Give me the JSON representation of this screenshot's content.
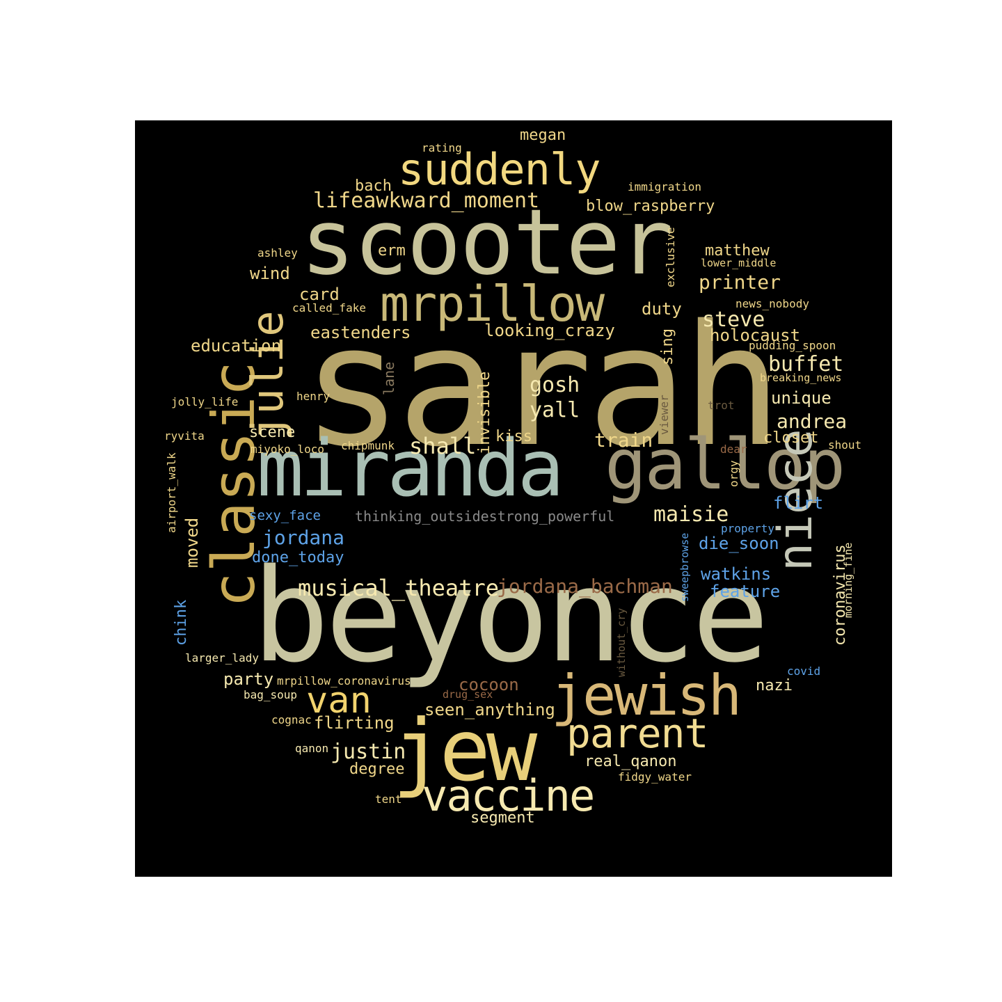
{
  "palette": {
    "background": "#000000",
    "page": "#ffffff",
    "tan": "#b5a46a",
    "light_tan": "#c7c39a",
    "sage": "#a9bfb4",
    "gold": "#e8cf7a",
    "yellow": "#f2dc8c",
    "cream": "#f6e9b0",
    "blue": "#5ea3e8",
    "rust": "#9a6a48",
    "grey": "#8a8a8a"
  },
  "words": [
    {
      "text": "sarah",
      "weight": 1.0,
      "color": "#b5a46a"
    },
    {
      "text": "beyonce",
      "weight": 0.9,
      "color": "#c8c5a0"
    },
    {
      "text": "scooter",
      "weight": 0.72,
      "color": "#c7c39a"
    },
    {
      "text": "miranda",
      "weight": 0.68,
      "color": "#a9bfb4"
    },
    {
      "text": "gallop",
      "weight": 0.62,
      "color": "#9f9578"
    },
    {
      "text": "classic",
      "weight": 0.6,
      "color": "#c9aa55"
    },
    {
      "text": "jew",
      "weight": 0.62,
      "color": "#e8cf7a"
    },
    {
      "text": "niece",
      "weight": 0.5,
      "color": "#c5c8b8"
    },
    {
      "text": "jewish",
      "weight": 0.5,
      "color": "#d8b878"
    },
    {
      "text": "mrpillow",
      "weight": 0.46,
      "color": "#c8b878"
    },
    {
      "text": "suddenly",
      "weight": 0.44,
      "color": "#f2d880"
    },
    {
      "text": "julie",
      "weight": 0.42,
      "color": "#e0c77c"
    },
    {
      "text": "parent",
      "weight": 0.42,
      "color": "#f1dc92"
    },
    {
      "text": "vaccine",
      "weight": 0.44,
      "color": "#f6e9b0"
    },
    {
      "text": "van",
      "weight": 0.36,
      "color": "#f2d36e"
    },
    {
      "text": "lifeawkward_moment",
      "weight": 0.2,
      "color": "#f0d78a"
    },
    {
      "text": "megan",
      "weight": 0.15,
      "color": "#f0d78a"
    },
    {
      "text": "rating",
      "weight": 0.1,
      "color": "#f0d78a"
    },
    {
      "text": "bach",
      "weight": 0.15,
      "color": "#f0d78a"
    },
    {
      "text": "immigration",
      "weight": 0.1,
      "color": "#f0d78a"
    },
    {
      "text": "blow_raspberry",
      "weight": 0.15,
      "color": "#f0d78a"
    },
    {
      "text": "exclusive",
      "weight": 0.1,
      "color": "#f0d78a"
    },
    {
      "text": "ashley",
      "weight": 0.11,
      "color": "#f0d78a"
    },
    {
      "text": "erm",
      "weight": 0.14,
      "color": "#f0d78a"
    },
    {
      "text": "matthew",
      "weight": 0.15,
      "color": "#f0d78a"
    },
    {
      "text": "lower_middle",
      "weight": 0.1,
      "color": "#f0d78a"
    },
    {
      "text": "wind",
      "weight": 0.15,
      "color": "#f0d78a"
    },
    {
      "text": "printer",
      "weight": 0.18,
      "color": "#f0d78a"
    },
    {
      "text": "card",
      "weight": 0.15,
      "color": "#f0d78a"
    },
    {
      "text": "called_fake",
      "weight": 0.1,
      "color": "#f0d78a"
    },
    {
      "text": "duty",
      "weight": 0.15,
      "color": "#f0d78a"
    },
    {
      "text": "news_nobody",
      "weight": 0.1,
      "color": "#f0d78a"
    },
    {
      "text": "steve",
      "weight": 0.18,
      "color": "#f6e9b0"
    },
    {
      "text": "eastenders",
      "weight": 0.15,
      "color": "#f0d78a"
    },
    {
      "text": "looking_crazy",
      "weight": 0.15,
      "color": "#f0d78a"
    },
    {
      "text": "sing",
      "weight": 0.15,
      "color": "#f0d78a"
    },
    {
      "text": "holocaust",
      "weight": 0.15,
      "color": "#f0d78a"
    },
    {
      "text": "education",
      "weight": 0.15,
      "color": "#f0d78a"
    },
    {
      "text": "pudding_spoon",
      "weight": 0.1,
      "color": "#f0d78a"
    },
    {
      "text": "buffet",
      "weight": 0.18,
      "color": "#f6e9b0"
    },
    {
      "text": "lane",
      "weight": 0.14,
      "color": "#8a7a60"
    },
    {
      "text": "invisible",
      "weight": 0.15,
      "color": "#f0d78a"
    },
    {
      "text": "breaking_news",
      "weight": 0.1,
      "color": "#f0d78a"
    },
    {
      "text": "gosh",
      "weight": 0.18,
      "color": "#f6e9b0"
    },
    {
      "text": "henry",
      "weight": 0.1,
      "color": "#f0d78a"
    },
    {
      "text": "unique",
      "weight": 0.15,
      "color": "#f6e9b0"
    },
    {
      "text": "yall",
      "weight": 0.18,
      "color": "#f6e9b0"
    },
    {
      "text": "jolly_life",
      "weight": 0.1,
      "color": "#f0d78a"
    },
    {
      "text": "viewer",
      "weight": 0.1,
      "color": "#6a5a40"
    },
    {
      "text": "trot",
      "weight": 0.1,
      "color": "#6a5a40"
    },
    {
      "text": "andrea",
      "weight": 0.18,
      "color": "#f6e9b0"
    },
    {
      "text": "ryvita",
      "weight": 0.1,
      "color": "#f0d78a"
    },
    {
      "text": "scene",
      "weight": 0.14,
      "color": "#f6e9b0"
    },
    {
      "text": "kiss",
      "weight": 0.15,
      "color": "#f0d78a"
    },
    {
      "text": "train",
      "weight": 0.18,
      "color": "#f0d78a"
    },
    {
      "text": "closet",
      "weight": 0.15,
      "color": "#f0d78a"
    },
    {
      "text": "shall",
      "weight": 0.2,
      "color": "#f6e9b0"
    },
    {
      "text": "shout",
      "weight": 0.1,
      "color": "#f0d78a"
    },
    {
      "text": "miyoko_loco",
      "weight": 0.1,
      "color": "#f0d78a"
    },
    {
      "text": "chipmunk",
      "weight": 0.1,
      "color": "#f0d78a"
    },
    {
      "text": "dear",
      "weight": 0.1,
      "color": "#9a6a48"
    },
    {
      "text": "orgy",
      "weight": 0.1,
      "color": "#f0d78a"
    },
    {
      "text": "airport_walk",
      "weight": 0.1,
      "color": "#f0d78a"
    },
    {
      "text": "flirt",
      "weight": 0.15,
      "color": "#5ea3e8"
    },
    {
      "text": "moved",
      "weight": 0.15,
      "color": "#f0d78a"
    },
    {
      "text": "sexy_face",
      "weight": 0.13,
      "color": "#5ea3e8"
    },
    {
      "text": "thinking_outsidestrong_powerful",
      "weight": 0.14,
      "color": "#8a8a8a"
    },
    {
      "text": "maisie",
      "weight": 0.18,
      "color": "#f6e9b0"
    },
    {
      "text": "jordana",
      "weight": 0.18,
      "color": "#5ea3e8"
    },
    {
      "text": "property",
      "weight": 0.1,
      "color": "#5ea3e8"
    },
    {
      "text": "die_soon",
      "weight": 0.15,
      "color": "#5ea3e8"
    },
    {
      "text": "done_today",
      "weight": 0.15,
      "color": "#5ea3e8"
    },
    {
      "text": "sweepbrowse",
      "weight": 0.1,
      "color": "#5ea3e8"
    },
    {
      "text": "coronavirus",
      "weight": 0.15,
      "color": "#f6e9b0"
    },
    {
      "text": "morning_fine",
      "weight": 0.1,
      "color": "#f6e9b0"
    },
    {
      "text": "watkins",
      "weight": 0.15,
      "color": "#5ea3e8"
    },
    {
      "text": "musical_theatre",
      "weight": 0.18,
      "color": "#f6e9b0"
    },
    {
      "text": "jordana_bachman",
      "weight": 0.18,
      "color": "#9a6a48"
    },
    {
      "text": "feature",
      "weight": 0.15,
      "color": "#5ea3e8"
    },
    {
      "text": "chink",
      "weight": 0.14,
      "color": "#5ea3e8"
    },
    {
      "text": "without_cry",
      "weight": 0.1,
      "color": "#6a5a40"
    },
    {
      "text": "larger_lady",
      "weight": 0.1,
      "color": "#f6e9b0"
    },
    {
      "text": "covid",
      "weight": 0.1,
      "color": "#5ea3e8"
    },
    {
      "text": "party",
      "weight": 0.15,
      "color": "#f6e9b0"
    },
    {
      "text": "mrpillow_coronavirus",
      "weight": 0.1,
      "color": "#f0d78a"
    },
    {
      "text": "cocoon",
      "weight": 0.15,
      "color": "#9a6a48"
    },
    {
      "text": "nazi",
      "weight": 0.15,
      "color": "#f6e9b0"
    },
    {
      "text": "bag_soup",
      "weight": 0.1,
      "color": "#f6e9b0"
    },
    {
      "text": "drug_sex",
      "weight": 0.1,
      "color": "#9a6a48"
    },
    {
      "text": "seen_anything",
      "weight": 0.15,
      "color": "#f0d78a"
    },
    {
      "text": "cognac",
      "weight": 0.1,
      "color": "#f0d78a"
    },
    {
      "text": "flirting",
      "weight": 0.15,
      "color": "#f0d78a"
    },
    {
      "text": "qanon",
      "weight": 0.1,
      "color": "#f6e9b0"
    },
    {
      "text": "justin",
      "weight": 0.18,
      "color": "#f6e9b0"
    },
    {
      "text": "real_qanon",
      "weight": 0.15,
      "color": "#f6e9b0"
    },
    {
      "text": "degree",
      "weight": 0.15,
      "color": "#f0d78a"
    },
    {
      "text": "fidgy_water",
      "weight": 0.1,
      "color": "#f0d78a"
    },
    {
      "text": "tent",
      "weight": 0.1,
      "color": "#f0d78a"
    },
    {
      "text": "segment",
      "weight": 0.15,
      "color": "#f6e9b0"
    }
  ]
}
